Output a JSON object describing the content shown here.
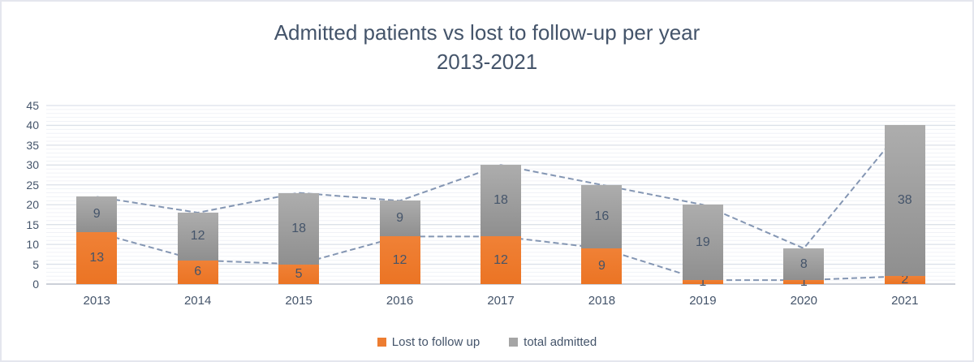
{
  "title": {
    "line1": "Admitted patients vs lost to follow-up per year",
    "line2": "2013-2021"
  },
  "chart_data": {
    "type": "bar",
    "stacked": true,
    "title": "Admitted patients vs lost to follow-up per year 2013-2021",
    "categories": [
      "2013",
      "2014",
      "2015",
      "2016",
      "2017",
      "2018",
      "2019",
      "2020",
      "2021"
    ],
    "series": [
      {
        "name": "Lost to follow up",
        "color": "#ed7d31",
        "values": [
          13,
          6,
          5,
          12,
          12,
          9,
          1,
          1,
          2
        ]
      },
      {
        "name": "total admitted",
        "color": "#a5a5a5",
        "values": [
          9,
          12,
          18,
          9,
          18,
          16,
          19,
          8,
          38
        ]
      }
    ],
    "stack_totals": [
      22,
      18,
      23,
      21,
      30,
      25,
      20,
      9,
      40
    ],
    "trend_lines": [
      {
        "name": "lost-to-follow-up-trend",
        "values": [
          13,
          6,
          5,
          12,
          12,
          9,
          1,
          1,
          2
        ]
      },
      {
        "name": "total-admitted-trend",
        "values": [
          22,
          18,
          23,
          21,
          30,
          25,
          20,
          9,
          40
        ]
      }
    ],
    "ylim": [
      0,
      45
    ],
    "y_major_step": 5,
    "y_minor_step": 1,
    "grid": true,
    "legend_position": "bottom",
    "colors": {
      "trend_line": "#8496b3",
      "major_grid": "#dce1e9",
      "minor_grid": "#f0f2f7",
      "axis_line": "#bcc1cb",
      "label_text": "#44546a"
    }
  },
  "y_axis": {
    "ticks": [
      "0",
      "5",
      "10",
      "15",
      "20",
      "25",
      "30",
      "35",
      "40",
      "45"
    ]
  },
  "x_axis": {
    "labels": [
      "2013",
      "2014",
      "2015",
      "2016",
      "2017",
      "2018",
      "2019",
      "2020",
      "2021"
    ]
  },
  "legend": {
    "items": [
      {
        "label": "Lost to follow up",
        "color": "#ed7d31"
      },
      {
        "label": "total admitted",
        "color": "#a5a5a5"
      }
    ]
  }
}
